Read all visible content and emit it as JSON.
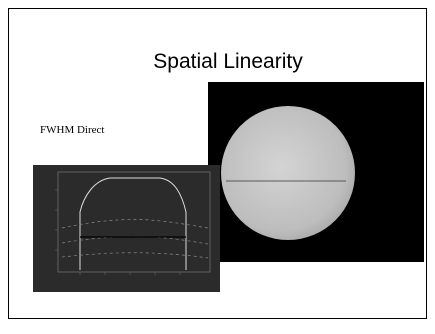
{
  "slide": {
    "title": "Spatial Linearity",
    "caption": "FWHM Direct"
  }
}
